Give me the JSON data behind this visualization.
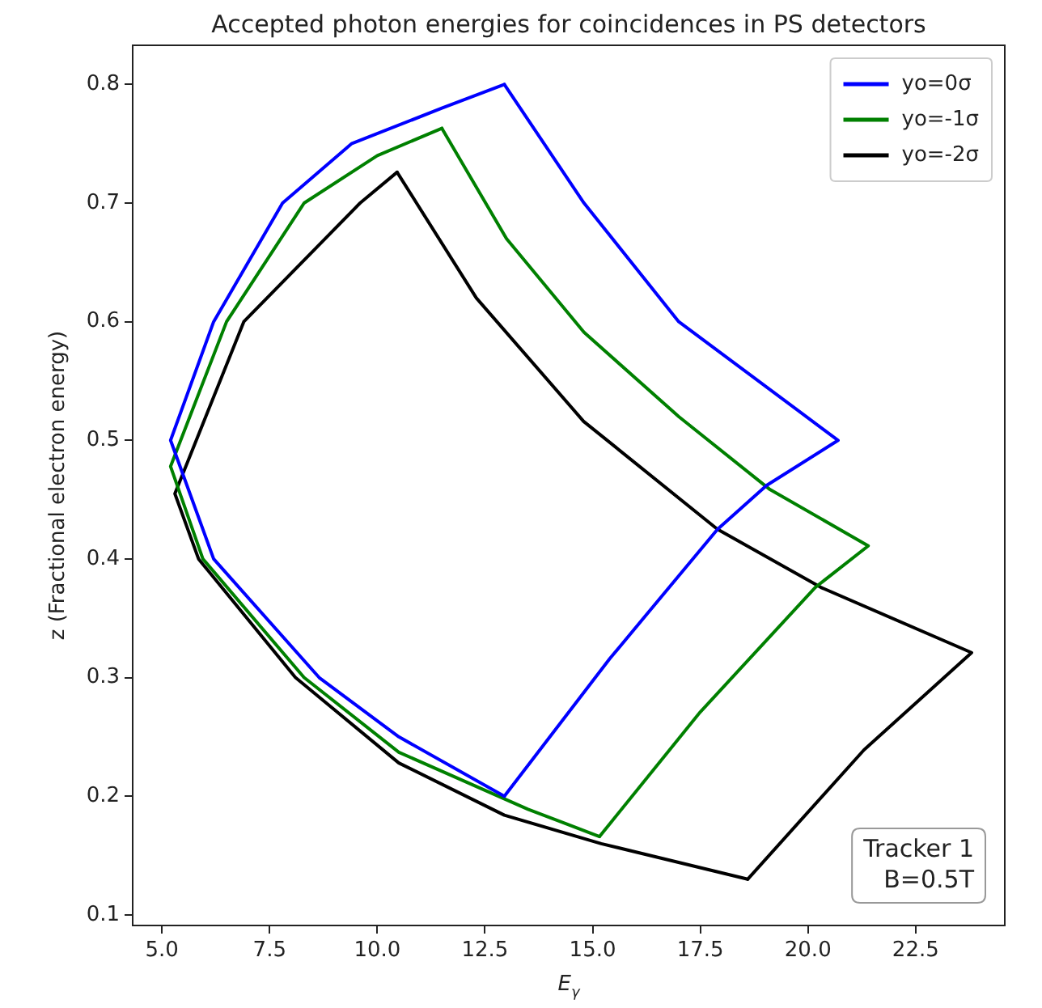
{
  "chart_data": {
    "type": "line",
    "title": "Accepted photon energies for coincidences in PS detectors",
    "xlabel": "E$_{γ}$",
    "ylabel": "z (Fractional electron energy)",
    "xlim": [
      4.32,
      24.57
    ],
    "ylim": [
      0.091,
      0.833
    ],
    "xticks": [
      {
        "value": 5,
        "label": "5.0"
      },
      7.5,
      {
        "value": 10,
        "label": "10.0"
      },
      12.5,
      {
        "value": 15,
        "label": "15.0"
      },
      17.5,
      {
        "value": 20,
        "label": "20.0"
      },
      22.5
    ],
    "yticks": [
      0.1,
      0.2,
      0.3,
      0.4,
      0.5,
      0.6,
      0.7,
      0.8
    ],
    "grid": false,
    "legend": "top right",
    "marker": "none",
    "line_style": "solid",
    "annotations": [
      "Tracker 1\nB=0.5T"
    ],
    "series": [
      {
        "name": "yo=0σ",
        "color": "#0000ff",
        "x": [
          12.95,
          10.5,
          8.65,
          6.2,
          5.2,
          6.2,
          7.8,
          9.4,
          11.5,
          12.95
        ],
        "values": [
          0.2,
          0.25,
          0.3,
          0.4,
          0.5,
          0.6,
          0.7,
          0.75,
          0.78,
          0.8
        ]
      },
      {
        "color": "#0000ff",
        "x": [
          12.95,
          14.8,
          17.0,
          20.7,
          19.04,
          17.9,
          15.4,
          12.95
        ],
        "values": [
          0.8,
          0.7,
          0.6,
          0.5,
          0.462,
          0.425,
          0.316,
          0.2
        ]
      },
      {
        "name": "yo=-1σ",
        "color": "#008000",
        "x": [
          15.16,
          13.5,
          10.5,
          8.3,
          5.95,
          5.2,
          6.5,
          8.3,
          10.0,
          11.5
        ],
        "values": [
          0.166,
          0.189,
          0.237,
          0.3,
          0.4,
          0.478,
          0.6,
          0.7,
          0.74,
          0.763
        ]
      },
      {
        "color": "#008000",
        "x": [
          11.5,
          13.0,
          14.8,
          17.0,
          19.1,
          21.4,
          20.17,
          17.5,
          15.16
        ],
        "values": [
          0.763,
          0.67,
          0.591,
          0.52,
          0.459,
          0.411,
          0.376,
          0.271,
          0.166
        ]
      },
      {
        "name": "yo=-2σ",
        "color": "#000000",
        "x": [
          18.6,
          15.2,
          12.95,
          10.5,
          8.1,
          5.85,
          5.3,
          6.9,
          9.6,
          10.46
        ],
        "values": [
          0.13,
          0.16,
          0.184,
          0.228,
          0.3,
          0.4,
          0.455,
          0.6,
          0.7,
          0.726
        ]
      },
      {
        "color": "#000000",
        "x": [
          10.46,
          12.3,
          14.79,
          17.9,
          20.3,
          23.8,
          21.3,
          18.6
        ],
        "values": [
          0.726,
          0.62,
          0.516,
          0.425,
          0.376,
          0.321,
          0.239,
          0.13
        ]
      }
    ]
  }
}
